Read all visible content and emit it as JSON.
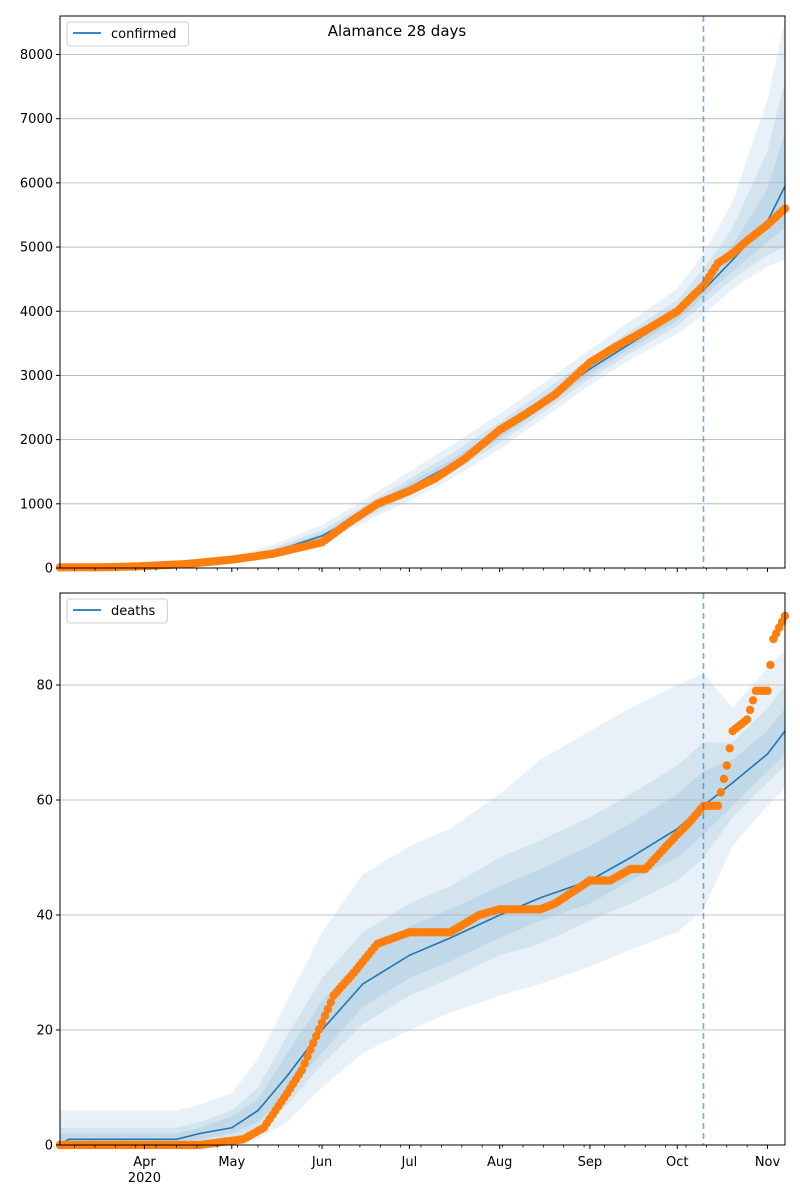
{
  "figure": {
    "title": "Alamance 28 days"
  },
  "colors": {
    "model": "#1f77b4",
    "observed": "#ff7f0e",
    "band": "#1f77b4",
    "grid": "#b0b0b0",
    "cutoff": "#1f77b4"
  },
  "chart_data": [
    {
      "type": "line",
      "title": "Alamance 28 days",
      "legend": {
        "label": "confirmed",
        "location": "top-left"
      },
      "xlabel": "",
      "ylabel": "",
      "grid": "horizontal",
      "ylim": [
        0,
        8600
      ],
      "y_ticks": [
        0,
        1000,
        2000,
        3000,
        4000,
        5000,
        6000,
        7000,
        8000
      ],
      "x_range": [
        "2020-03-03",
        "2020-11-07"
      ],
      "forecast_start": "2020-10-10",
      "series": [
        {
          "name": "confirmed",
          "kind": "model",
          "x": [
            "2020-03-03",
            "2020-04-01",
            "2020-05-01",
            "2020-05-15",
            "2020-06-01",
            "2020-06-15",
            "2020-07-01",
            "2020-07-15",
            "2020-08-01",
            "2020-08-15",
            "2020-09-01",
            "2020-09-15",
            "2020-10-01",
            "2020-10-10",
            "2020-10-20",
            "2020-11-01",
            "2020-11-07"
          ],
          "values": [
            10,
            25,
            110,
            250,
            500,
            850,
            1250,
            1600,
            2100,
            2550,
            3100,
            3500,
            3950,
            4330,
            4800,
            5400,
            5950
          ],
          "bands": [
            {
              "lower": [
                0,
                10,
                70,
                170,
                380,
                700,
                1050,
                1380,
                1850,
                2300,
                2850,
                3250,
                3650,
                3950,
                4350,
                4700,
                4800
              ],
              "upper": [
                25,
                50,
                170,
                360,
                670,
                1050,
                1500,
                1900,
                2400,
                2850,
                3400,
                3850,
                4350,
                4900,
                5700,
                7300,
                8550
              ]
            },
            {
              "lower": [
                2,
                15,
                85,
                200,
                430,
                760,
                1130,
                1470,
                1950,
                2400,
                2950,
                3350,
                3770,
                4120,
                4500,
                4880,
                5000
              ],
              "upper": [
                18,
                38,
                140,
                310,
                590,
                960,
                1390,
                1770,
                2270,
                2720,
                3270,
                3700,
                4170,
                4650,
                5300,
                6500,
                7600
              ]
            },
            {
              "lower": [
                5,
                18,
                95,
                220,
                460,
                800,
                1180,
                1530,
                2020,
                2470,
                3020,
                3420,
                3860,
                4230,
                4620,
                5080,
                5300
              ],
              "upper": [
                14,
                32,
                125,
                280,
                540,
                900,
                1320,
                1680,
                2180,
                2630,
                3180,
                3580,
                4040,
                4480,
                5030,
                5900,
                6800
              ]
            }
          ]
        },
        {
          "name": "",
          "kind": "observed",
          "x": [
            "2020-03-03",
            "2020-03-20",
            "2020-04-01",
            "2020-04-15",
            "2020-05-01",
            "2020-05-15",
            "2020-06-01",
            "2020-06-10",
            "2020-06-20",
            "2020-07-01",
            "2020-07-10",
            "2020-07-20",
            "2020-08-01",
            "2020-08-10",
            "2020-08-20",
            "2020-09-01",
            "2020-09-10",
            "2020-09-20",
            "2020-10-01",
            "2020-10-10",
            "2020-10-15",
            "2020-10-20",
            "2020-10-25",
            "2020-11-01",
            "2020-11-07"
          ],
          "values": [
            10,
            12,
            30,
            60,
            130,
            220,
            400,
            700,
            1000,
            1200,
            1400,
            1700,
            2150,
            2400,
            2700,
            3200,
            3450,
            3700,
            4000,
            4400,
            4750,
            4900,
            5100,
            5350,
            5600
          ]
        }
      ]
    },
    {
      "type": "line",
      "title": "",
      "legend": {
        "label": "deaths",
        "location": "top-left"
      },
      "xlabel": "",
      "ylabel": "",
      "grid": "horizontal",
      "ylim": [
        0,
        96
      ],
      "y_ticks": [
        0,
        20,
        40,
        60,
        80
      ],
      "x_range": [
        "2020-03-03",
        "2020-11-07"
      ],
      "x_ticks": [
        {
          "date": "2020-04-01",
          "label": "Apr",
          "sublabel": "2020"
        },
        {
          "date": "2020-05-01",
          "label": "May"
        },
        {
          "date": "2020-06-01",
          "label": "Jun"
        },
        {
          "date": "2020-07-01",
          "label": "Jul"
        },
        {
          "date": "2020-08-01",
          "label": "Aug"
        },
        {
          "date": "2020-09-01",
          "label": "Sep"
        },
        {
          "date": "2020-10-01",
          "label": "Oct"
        },
        {
          "date": "2020-11-01",
          "label": "Nov"
        }
      ],
      "forecast_start": "2020-10-10",
      "series": [
        {
          "name": "deaths",
          "kind": "model",
          "x": [
            "2020-03-03",
            "2020-03-06",
            "2020-04-12",
            "2020-04-20",
            "2020-05-01",
            "2020-05-10",
            "2020-05-20",
            "2020-06-01",
            "2020-06-15",
            "2020-07-01",
            "2020-07-15",
            "2020-08-01",
            "2020-08-15",
            "2020-09-01",
            "2020-09-15",
            "2020-10-01",
            "2020-10-10",
            "2020-10-20",
            "2020-11-01",
            "2020-11-07"
          ],
          "values": [
            0,
            1,
            1,
            2,
            3,
            6,
            12,
            20,
            28,
            33,
            36,
            40,
            43,
            46,
            50,
            55,
            59,
            63,
            68,
            72
          ],
          "bands": [
            {
              "lower": [
                0,
                0,
                0,
                0,
                0,
                1,
                4,
                10,
                16,
                20,
                23,
                26,
                28,
                31,
                34,
                37,
                41,
                52,
                59,
                62
              ],
              "upper": [
                6,
                6,
                6,
                7,
                9,
                15,
                25,
                37,
                47,
                52,
                55,
                61,
                67,
                72,
                76,
                80,
                82,
                76,
                83,
                86
              ]
            },
            {
              "lower": [
                0,
                0,
                0,
                0,
                1,
                3,
                7,
                14,
                21,
                26,
                29,
                33,
                35,
                39,
                42,
                46,
                50,
                57,
                63,
                66
              ],
              "upper": [
                3,
                3,
                3,
                4,
                6,
                10,
                19,
                29,
                37,
                42,
                45,
                50,
                53,
                57,
                61,
                66,
                70,
                70,
                76,
                80
              ]
            },
            {
              "lower": [
                0,
                0,
                0,
                1,
                2,
                4,
                9,
                16,
                24,
                29,
                32,
                36,
                39,
                42,
                46,
                50,
                54,
                59,
                65,
                68
              ],
              "upper": [
                2,
                2,
                2,
                3,
                5,
                8,
                16,
                25,
                33,
                38,
                41,
                45,
                48,
                52,
                56,
                61,
                65,
                67,
                72,
                76
              ]
            }
          ]
        },
        {
          "name": "",
          "kind": "observed",
          "x": [
            "2020-03-03",
            "2020-04-20",
            "2020-05-05",
            "2020-05-12",
            "2020-05-20",
            "2020-05-25",
            "2020-06-05",
            "2020-06-12",
            "2020-06-20",
            "2020-07-01",
            "2020-07-15",
            "2020-07-25",
            "2020-08-01",
            "2020-08-15",
            "2020-08-20",
            "2020-09-01",
            "2020-09-08",
            "2020-09-15",
            "2020-09-20",
            "2020-10-01",
            "2020-10-05",
            "2020-10-10",
            "2020-10-15",
            "2020-10-18",
            "2020-10-20",
            "2020-10-25",
            "2020-10-28",
            "2020-11-01",
            "2020-11-03",
            "2020-11-05",
            "2020-11-07"
          ],
          "values": [
            0,
            0,
            1,
            3,
            9,
            13,
            26,
            30,
            35,
            37,
            37,
            40,
            41,
            41,
            42,
            46,
            46,
            48,
            48,
            54,
            56,
            59,
            59,
            66,
            72,
            74,
            79,
            79,
            88,
            90,
            92
          ]
        }
      ]
    }
  ]
}
